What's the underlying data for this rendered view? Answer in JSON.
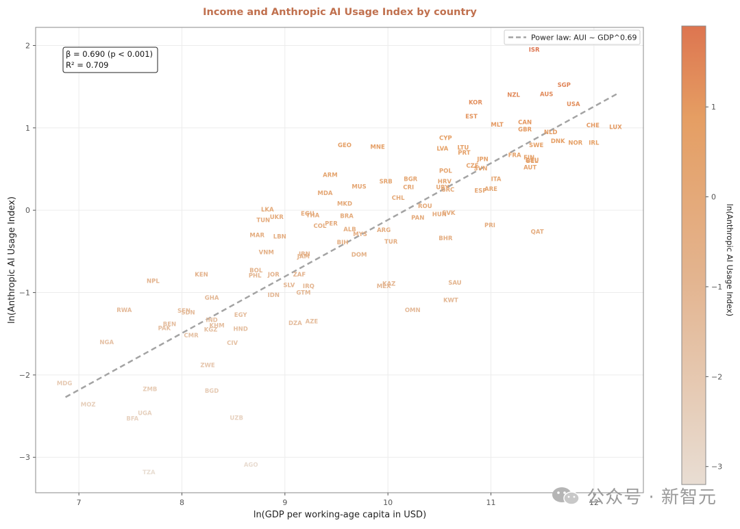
{
  "chart_data": {
    "type": "scatter",
    "title": "Income and Anthropic AI Usage Index by country",
    "xlabel": "ln(GDP per working-age capita in USD)",
    "ylabel": "ln(Anthropic AI Usage Index)",
    "xlim": [
      6.58,
      12.48
    ],
    "ylim": [
      -3.43,
      2.22
    ],
    "xticks": [
      7,
      8,
      9,
      10,
      11,
      12
    ],
    "yticks": [
      -3,
      -2,
      -1,
      0,
      1,
      2
    ],
    "xtick_labels": [
      "7",
      "8",
      "9",
      "10",
      "11",
      "12"
    ],
    "ytick_labels": [
      "−3",
      "−2",
      "−1",
      "0",
      "1",
      "2"
    ],
    "grid": true,
    "legend": {
      "position": "top-right",
      "label": "Power law: AUI ~ GDP^0.69"
    },
    "annotation": {
      "line1": "β = 0.690 (p < 0.001)",
      "line2": "R² = 0.709",
      "position": "top-left"
    },
    "fit_line": {
      "x": [
        6.87,
        12.22
      ],
      "y": [
        -2.27,
        1.41
      ],
      "color": "#a3a3a3"
    },
    "colorbar": {
      "label": "ln(Anthropic AI Usage Index)",
      "range": [
        -3.2,
        1.9
      ],
      "ticks": [
        1,
        0,
        -1,
        -2,
        -3
      ],
      "tick_labels": [
        "1",
        "0",
        "−1",
        "−2",
        "−3"
      ],
      "colors": [
        "#e8ddd3",
        "#e3b48f",
        "#e59e63",
        "#dd7550"
      ]
    },
    "colors": {
      "title": "#c0704e",
      "axis": "#555555",
      "grid": "#ececec",
      "frame": "#888888"
    },
    "points": [
      {
        "code": "ISR",
        "x": 11.42,
        "y": 1.95
      },
      {
        "code": "SGP",
        "x": 11.71,
        "y": 1.52
      },
      {
        "code": "AUS",
        "x": 11.54,
        "y": 1.41
      },
      {
        "code": "NZL",
        "x": 11.22,
        "y": 1.4
      },
      {
        "code": "USA",
        "x": 11.8,
        "y": 1.29
      },
      {
        "code": "KOR",
        "x": 10.85,
        "y": 1.31
      },
      {
        "code": "EST",
        "x": 10.81,
        "y": 1.14
      },
      {
        "code": "MLT",
        "x": 11.06,
        "y": 1.04
      },
      {
        "code": "CAN",
        "x": 11.33,
        "y": 1.07
      },
      {
        "code": "GBR",
        "x": 11.33,
        "y": 0.98
      },
      {
        "code": "CHE",
        "x": 11.99,
        "y": 1.03
      },
      {
        "code": "LUX",
        "x": 12.21,
        "y": 1.01
      },
      {
        "code": "NLD",
        "x": 11.58,
        "y": 0.95
      },
      {
        "code": "DNK",
        "x": 11.65,
        "y": 0.84
      },
      {
        "code": "NOR",
        "x": 11.82,
        "y": 0.82
      },
      {
        "code": "IRL",
        "x": 12.0,
        "y": 0.82
      },
      {
        "code": "SWE",
        "x": 11.44,
        "y": 0.79
      },
      {
        "code": "CYP",
        "x": 10.56,
        "y": 0.88
      },
      {
        "code": "LVA",
        "x": 10.53,
        "y": 0.75
      },
      {
        "code": "LTU",
        "x": 10.73,
        "y": 0.76
      },
      {
        "code": "PRT",
        "x": 10.74,
        "y": 0.7
      },
      {
        "code": "FRA",
        "x": 11.23,
        "y": 0.67
      },
      {
        "code": "FIN",
        "x": 11.37,
        "y": 0.64
      },
      {
        "code": "BEL",
        "x": 11.4,
        "y": 0.6
      },
      {
        "code": "DEU",
        "x": 11.4,
        "y": 0.61
      },
      {
        "code": "JPN",
        "x": 10.92,
        "y": 0.62
      },
      {
        "code": "CZE",
        "x": 10.82,
        "y": 0.54
      },
      {
        "code": "SVN",
        "x": 10.9,
        "y": 0.51
      },
      {
        "code": "AUT",
        "x": 11.38,
        "y": 0.52
      },
      {
        "code": "POL",
        "x": 10.56,
        "y": 0.48
      },
      {
        "code": "ITA",
        "x": 11.05,
        "y": 0.38
      },
      {
        "code": "HRV",
        "x": 10.55,
        "y": 0.35
      },
      {
        "code": "URY",
        "x": 10.53,
        "y": 0.28
      },
      {
        "code": "GRC",
        "x": 10.58,
        "y": 0.25
      },
      {
        "code": "ESP",
        "x": 10.9,
        "y": 0.24
      },
      {
        "code": "ARE",
        "x": 11.0,
        "y": 0.26
      },
      {
        "code": "GEO",
        "x": 9.58,
        "y": 0.79
      },
      {
        "code": "MNE",
        "x": 9.9,
        "y": 0.77
      },
      {
        "code": "ARM",
        "x": 9.44,
        "y": 0.43
      },
      {
        "code": "SRB",
        "x": 9.98,
        "y": 0.35
      },
      {
        "code": "BGR",
        "x": 10.22,
        "y": 0.38
      },
      {
        "code": "CRI",
        "x": 10.2,
        "y": 0.28
      },
      {
        "code": "MUS",
        "x": 9.72,
        "y": 0.29
      },
      {
        "code": "MDA",
        "x": 9.39,
        "y": 0.21
      },
      {
        "code": "CHL",
        "x": 10.1,
        "y": 0.15
      },
      {
        "code": "MKD",
        "x": 9.58,
        "y": 0.08
      },
      {
        "code": "ROU",
        "x": 10.36,
        "y": 0.05
      },
      {
        "code": "SVK",
        "x": 10.59,
        "y": -0.03
      },
      {
        "code": "HUN",
        "x": 10.5,
        "y": -0.05
      },
      {
        "code": "PAN",
        "x": 10.29,
        "y": -0.09
      },
      {
        "code": "PRI",
        "x": 10.99,
        "y": -0.18
      },
      {
        "code": "QAT",
        "x": 11.45,
        "y": -0.26
      },
      {
        "code": "BHR",
        "x": 10.56,
        "y": -0.34
      },
      {
        "code": "LKA",
        "x": 8.83,
        "y": 0.01
      },
      {
        "code": "EGU",
        "x": 9.22,
        "y": -0.04
      },
      {
        "code": "UKR",
        "x": 8.92,
        "y": -0.08
      },
      {
        "code": "TUN",
        "x": 8.79,
        "y": -0.12
      },
      {
        "code": "BRA",
        "x": 9.6,
        "y": -0.07
      },
      {
        "code": "THA",
        "x": 9.27,
        "y": -0.06
      },
      {
        "code": "PER",
        "x": 9.45,
        "y": -0.16
      },
      {
        "code": "COL",
        "x": 9.34,
        "y": -0.19
      },
      {
        "code": "ALB",
        "x": 9.63,
        "y": -0.23
      },
      {
        "code": "ARG",
        "x": 9.96,
        "y": -0.24
      },
      {
        "code": "MYS",
        "x": 9.73,
        "y": -0.29
      },
      {
        "code": "MAR",
        "x": 8.73,
        "y": -0.3
      },
      {
        "code": "LBN",
        "x": 8.95,
        "y": -0.32
      },
      {
        "code": "BIH",
        "x": 9.56,
        "y": -0.39
      },
      {
        "code": "TUR",
        "x": 10.03,
        "y": -0.38
      },
      {
        "code": "VNM",
        "x": 8.82,
        "y": -0.51
      },
      {
        "code": "DOM",
        "x": 9.72,
        "y": -0.54
      },
      {
        "code": "IRN",
        "x": 9.19,
        "y": -0.53
      },
      {
        "code": "JAM",
        "x": 9.18,
        "y": -0.56
      },
      {
        "code": "BOL",
        "x": 8.72,
        "y": -0.73
      },
      {
        "code": "PHL",
        "x": 8.71,
        "y": -0.79
      },
      {
        "code": "JOR",
        "x": 8.89,
        "y": -0.78
      },
      {
        "code": "ZAF",
        "x": 9.14,
        "y": -0.78
      },
      {
        "code": "SLV",
        "x": 9.04,
        "y": -0.91
      },
      {
        "code": "IRQ",
        "x": 9.23,
        "y": -0.92
      },
      {
        "code": "GTM",
        "x": 9.18,
        "y": -1.0
      },
      {
        "code": "IDN",
        "x": 8.89,
        "y": -1.03
      },
      {
        "code": "KAZ",
        "x": 10.01,
        "y": -0.89
      },
      {
        "code": "MEX",
        "x": 9.96,
        "y": -0.92
      },
      {
        "code": "SAU",
        "x": 10.65,
        "y": -0.88
      },
      {
        "code": "KWT",
        "x": 10.61,
        "y": -1.09
      },
      {
        "code": "OMN",
        "x": 10.24,
        "y": -1.21
      },
      {
        "code": "KEN",
        "x": 8.19,
        "y": -0.78
      },
      {
        "code": "NPL",
        "x": 7.72,
        "y": -0.86
      },
      {
        "code": "GHA",
        "x": 8.29,
        "y": -1.06
      },
      {
        "code": "RWA",
        "x": 7.44,
        "y": -1.21
      },
      {
        "code": "SEN",
        "x": 8.02,
        "y": -1.22
      },
      {
        "code": "SDN",
        "x": 8.06,
        "y": -1.24
      },
      {
        "code": "EGY",
        "x": 8.57,
        "y": -1.27
      },
      {
        "code": "IND",
        "x": 8.29,
        "y": -1.33
      },
      {
        "code": "BEN",
        "x": 7.88,
        "y": -1.38
      },
      {
        "code": "PAK",
        "x": 7.83,
        "y": -1.43
      },
      {
        "code": "KHM",
        "x": 8.34,
        "y": -1.4
      },
      {
        "code": "KGZ",
        "x": 8.28,
        "y": -1.45
      },
      {
        "code": "HND",
        "x": 8.57,
        "y": -1.44
      },
      {
        "code": "DZA",
        "x": 9.1,
        "y": -1.37
      },
      {
        "code": "AZE",
        "x": 9.26,
        "y": -1.35
      },
      {
        "code": "CMR",
        "x": 8.09,
        "y": -1.52
      },
      {
        "code": "NGA",
        "x": 7.27,
        "y": -1.6
      },
      {
        "code": "CIV",
        "x": 8.49,
        "y": -1.61
      },
      {
        "code": "ZWE",
        "x": 8.25,
        "y": -1.88
      },
      {
        "code": "MDG",
        "x": 6.86,
        "y": -2.1
      },
      {
        "code": "ZMB",
        "x": 7.69,
        "y": -2.17
      },
      {
        "code": "BGD",
        "x": 8.29,
        "y": -2.19
      },
      {
        "code": "MOZ",
        "x": 7.09,
        "y": -2.36
      },
      {
        "code": "UGA",
        "x": 7.64,
        "y": -2.46
      },
      {
        "code": "BFA",
        "x": 7.52,
        "y": -2.53
      },
      {
        "code": "UZB",
        "x": 8.53,
        "y": -2.52
      },
      {
        "code": "AGO",
        "x": 8.67,
        "y": -3.09
      },
      {
        "code": "TZA",
        "x": 7.68,
        "y": -3.18
      }
    ]
  },
  "watermark": {
    "text": "公众号 · 新智元"
  }
}
